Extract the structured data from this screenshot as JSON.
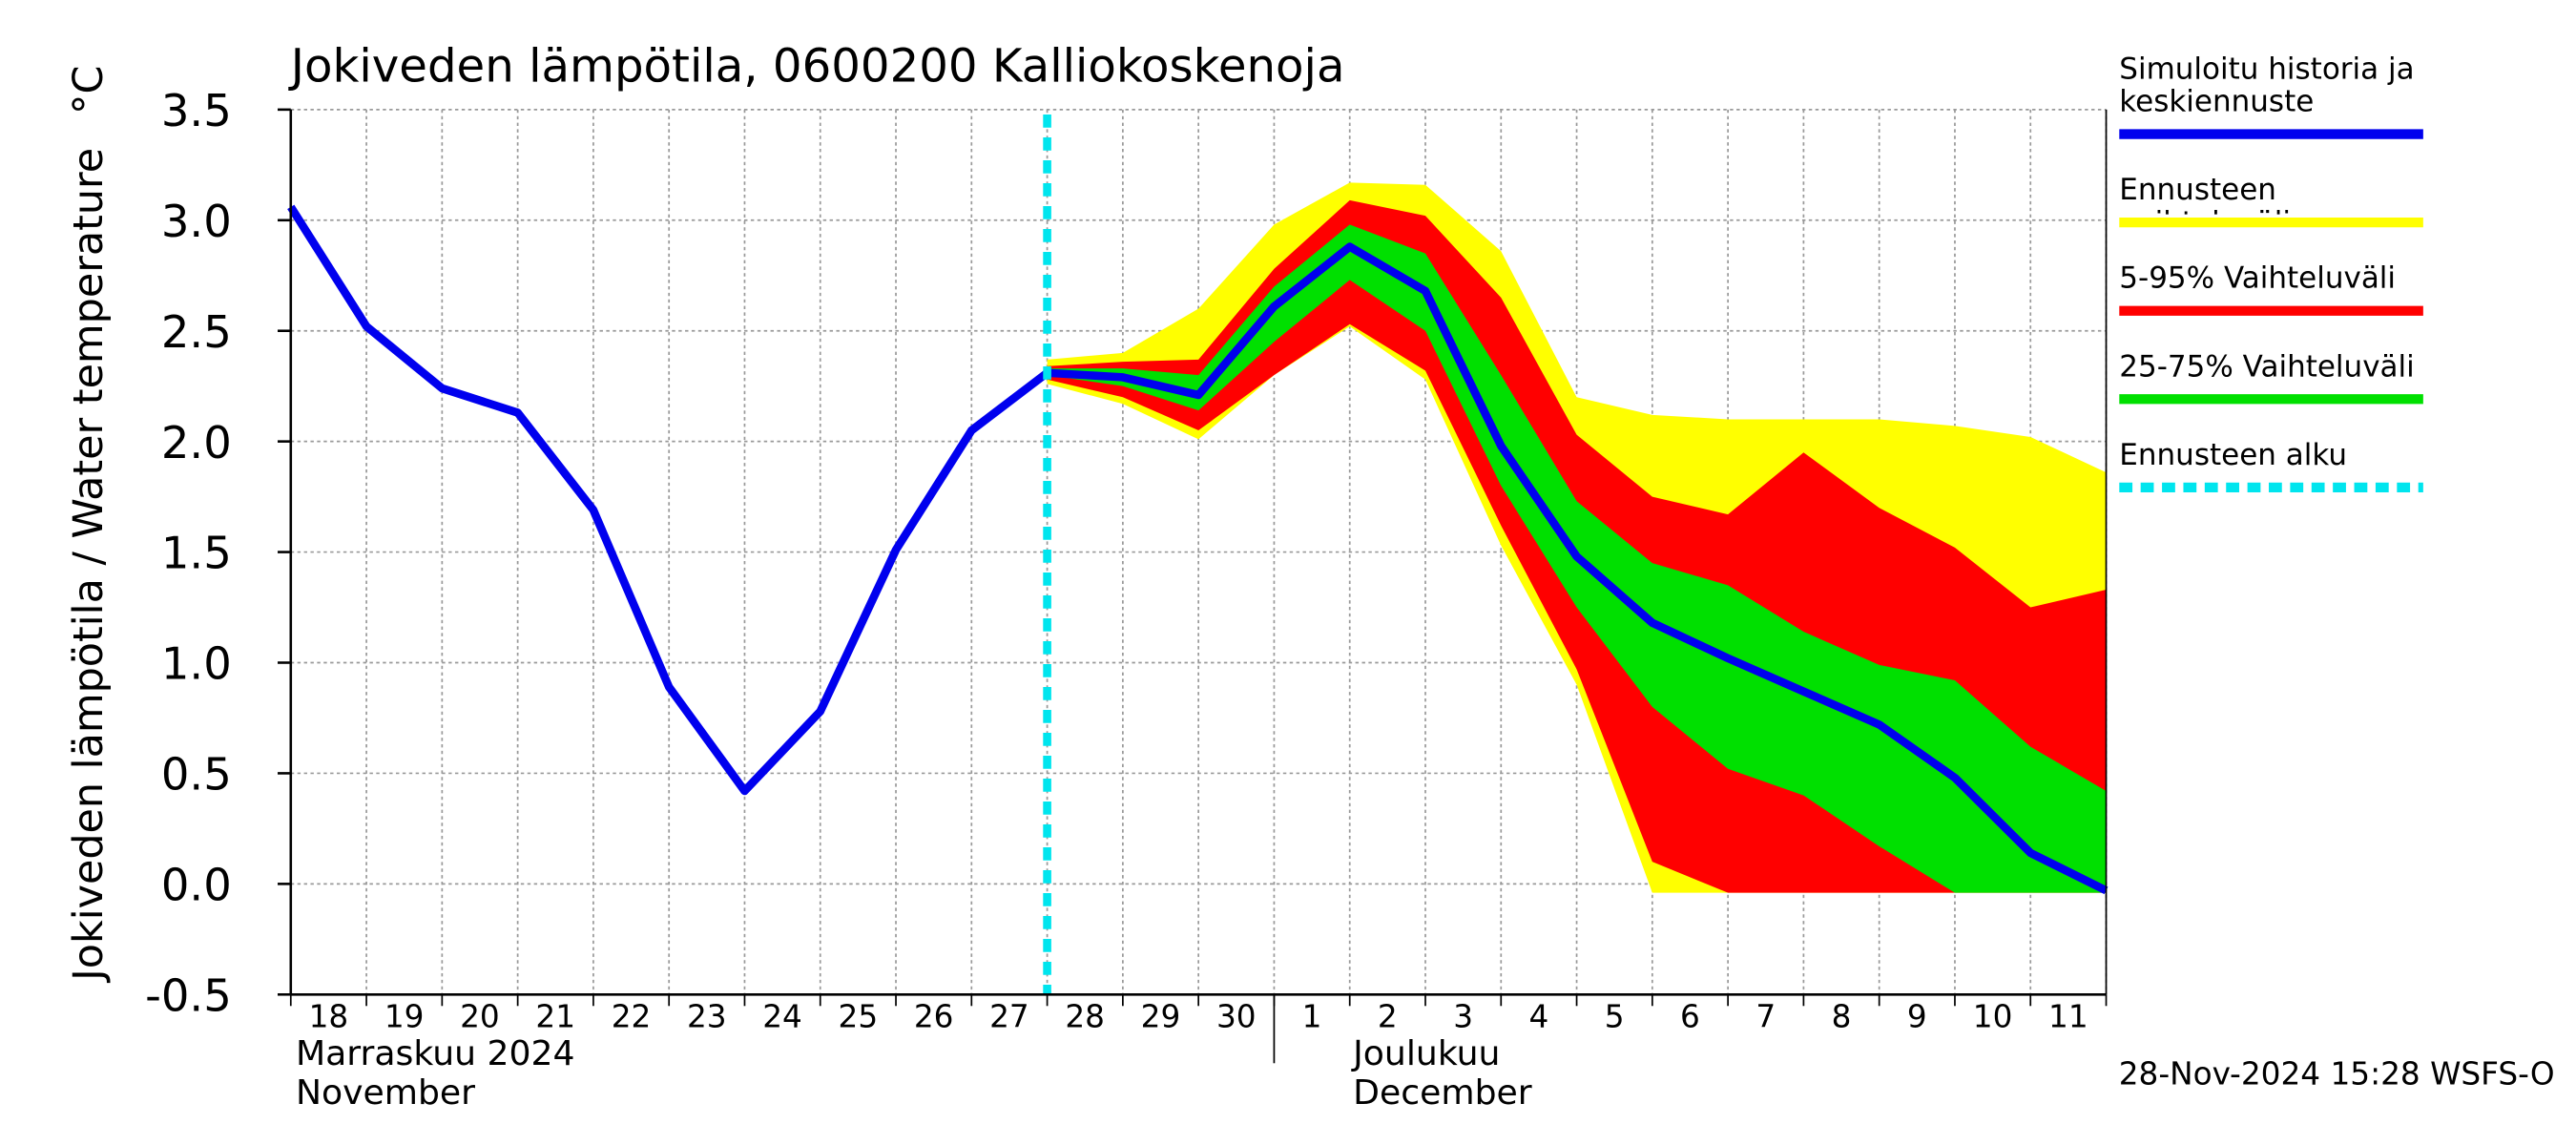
{
  "chart_data": {
    "type": "line",
    "title": "Jokiveden lämpötila, 0600200 Kalliokoskenoja",
    "y_label": "Jokiveden lämpötila / Water temperature",
    "y_unit": "°C",
    "categories": [
      "18",
      "19",
      "20",
      "21",
      "22",
      "23",
      "24",
      "25",
      "26",
      "27",
      "28",
      "29",
      "30",
      "1",
      "2",
      "3",
      "4",
      "5",
      "6",
      "7",
      "8",
      "9",
      "10",
      "11",
      null
    ],
    "month_labels": [
      {
        "index": 0,
        "fi": "Marraskuu 2024",
        "en": "November"
      },
      {
        "index": 13,
        "fi": "Joulukuu",
        "en": "December"
      }
    ],
    "ylim": [
      -0.5,
      3.5
    ],
    "yticks": [
      -0.5,
      {
        "value": 0,
        "label": "0.0"
      },
      0.5,
      {
        "value": 1,
        "label": "1.0"
      },
      1.5,
      {
        "value": 2,
        "label": "2.0"
      },
      2.5,
      {
        "value": 3,
        "label": "3.0"
      },
      3.5
    ],
    "grid": true,
    "bands": [
      {
        "name": "Ennusteen vaihteluväli",
        "color": "#ffff00",
        "high": [
          null,
          null,
          null,
          null,
          null,
          null,
          null,
          null,
          null,
          null,
          2.37,
          2.4,
          2.6,
          2.98,
          3.17,
          3.16,
          2.86,
          2.2,
          2.12,
          2.1,
          2.1,
          2.1,
          2.07,
          2.02,
          1.86
        ],
        "low": [
          null,
          null,
          null,
          null,
          null,
          null,
          null,
          null,
          null,
          null,
          2.26,
          2.17,
          2.01,
          2.3,
          2.52,
          2.28,
          1.53,
          0.9,
          -0.04,
          -0.04,
          -0.04,
          -0.04,
          -0.04,
          -0.04,
          -0.04
        ]
      },
      {
        "name": "5-95% Vaihteluväli",
        "color": "#ff0000",
        "high": [
          null,
          null,
          null,
          null,
          null,
          null,
          null,
          null,
          null,
          null,
          2.34,
          2.36,
          2.37,
          2.78,
          3.09,
          3.02,
          2.65,
          2.03,
          1.75,
          1.67,
          1.95,
          1.7,
          1.52,
          1.25,
          1.33
        ],
        "low": [
          null,
          null,
          null,
          null,
          null,
          null,
          null,
          null,
          null,
          null,
          2.28,
          2.2,
          2.05,
          2.3,
          2.53,
          2.32,
          1.62,
          0.97,
          0.1,
          -0.04,
          -0.04,
          -0.04,
          -0.04,
          -0.04,
          -0.04
        ]
      },
      {
        "name": "25-75% Vaihteluväli",
        "color": "#00e000",
        "high": [
          null,
          null,
          null,
          null,
          null,
          null,
          null,
          null,
          null,
          null,
          2.33,
          2.33,
          2.3,
          2.7,
          2.98,
          2.85,
          2.3,
          1.73,
          1.45,
          1.35,
          1.14,
          0.99,
          0.92,
          0.62,
          0.42
        ],
        "low": [
          null,
          null,
          null,
          null,
          null,
          null,
          null,
          null,
          null,
          null,
          2.3,
          2.25,
          2.14,
          2.45,
          2.73,
          2.5,
          1.8,
          1.25,
          0.8,
          0.52,
          0.4,
          0.17,
          -0.04,
          -0.04,
          -0.04
        ]
      }
    ],
    "series": [
      {
        "name": "Simuloitu historia ja keskiennuste",
        "color": "#0000ee",
        "values": [
          3.06,
          2.52,
          2.24,
          2.13,
          1.69,
          0.89,
          0.42,
          0.78,
          1.51,
          2.05,
          2.31,
          2.29,
          2.21,
          2.61,
          2.88,
          2.68,
          1.98,
          1.48,
          1.18,
          1.02,
          0.87,
          0.72,
          0.48,
          0.14,
          -0.03
        ]
      }
    ],
    "forecast_start": {
      "name": "Ennusteen alku",
      "index": 10,
      "color": "#00e5ee"
    },
    "timestamp": "28-Nov-2024 15:28 WSFS-O"
  }
}
